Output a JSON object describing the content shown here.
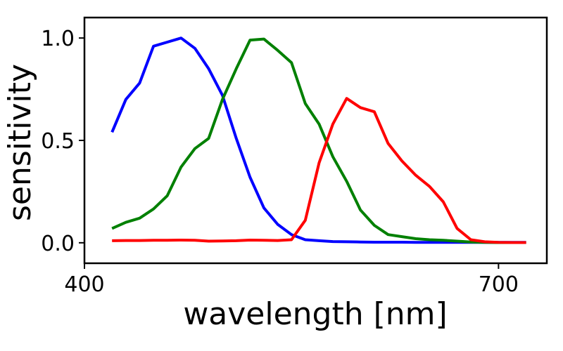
{
  "chart_data": {
    "type": "line",
    "xlabel": "wavelength [nm]",
    "ylabel": "sensitivity",
    "xlim": [
      400,
      735
    ],
    "ylim": [
      -0.1,
      1.1
    ],
    "xticks": [
      400,
      700
    ],
    "xtick_labels": [
      "400",
      "700"
    ],
    "yticks": [
      0.0,
      0.5,
      1.0
    ],
    "ytick_labels": [
      "0.0",
      "0.5",
      "1.0"
    ],
    "grid": false,
    "series": [
      {
        "color": "#0000ff",
        "x": [
          420,
          430,
          440,
          450,
          460,
          470,
          480,
          490,
          500,
          510,
          520,
          530,
          540,
          550,
          560,
          570,
          580,
          590,
          600,
          610,
          620,
          630,
          640,
          650,
          660,
          670,
          680,
          690,
          700,
          710,
          720
        ],
        "y": [
          0.54,
          0.7,
          0.78,
          0.96,
          0.98,
          1.0,
          0.95,
          0.85,
          0.72,
          0.51,
          0.32,
          0.17,
          0.09,
          0.04,
          0.015,
          0.01,
          0.006,
          0.005,
          0.004,
          0.003,
          0.003,
          0.003,
          0.002,
          0.002,
          0.002,
          0.002,
          0.002,
          0.002,
          0.002,
          0.002,
          0.002
        ]
      },
      {
        "color": "#008000",
        "x": [
          420,
          430,
          440,
          450,
          460,
          470,
          480,
          490,
          500,
          510,
          520,
          530,
          540,
          550,
          560,
          570,
          580,
          590,
          600,
          610,
          620,
          630,
          640,
          650,
          660,
          670,
          680,
          690,
          700,
          710,
          720
        ],
        "y": [
          0.07,
          0.1,
          0.12,
          0.165,
          0.23,
          0.37,
          0.46,
          0.51,
          0.7,
          0.85,
          0.99,
          0.995,
          0.94,
          0.88,
          0.68,
          0.58,
          0.42,
          0.3,
          0.16,
          0.085,
          0.04,
          0.03,
          0.02,
          0.015,
          0.012,
          0.008,
          0.004,
          0.002,
          0.001,
          0.001,
          0.001
        ]
      },
      {
        "color": "#ff0000",
        "x": [
          420,
          430,
          440,
          450,
          460,
          470,
          480,
          490,
          500,
          510,
          520,
          530,
          540,
          550,
          560,
          570,
          580,
          590,
          600,
          610,
          620,
          630,
          640,
          650,
          660,
          670,
          680,
          690,
          700,
          710,
          720
        ],
        "y": [
          0.01,
          0.011,
          0.011,
          0.012,
          0.012,
          0.013,
          0.012,
          0.008,
          0.009,
          0.01,
          0.013,
          0.012,
          0.011,
          0.015,
          0.11,
          0.39,
          0.58,
          0.705,
          0.66,
          0.64,
          0.485,
          0.4,
          0.33,
          0.275,
          0.2,
          0.07,
          0.015,
          0.005,
          0.002,
          0.001,
          0.001
        ]
      }
    ]
  }
}
